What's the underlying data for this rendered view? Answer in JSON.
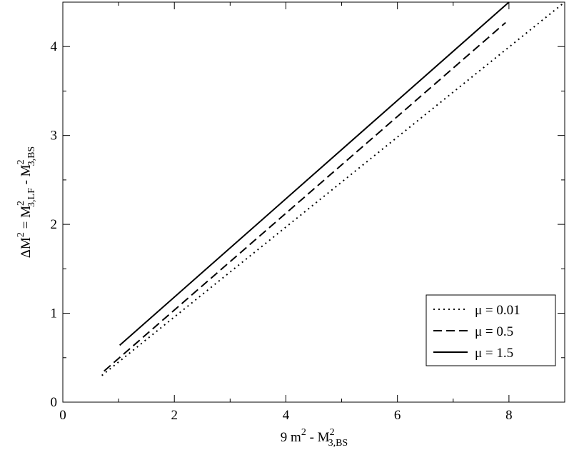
{
  "chart_data": {
    "type": "line",
    "x_label": [
      "9 m",
      "2",
      " - M",
      "2",
      "3,BS"
    ],
    "y_label": [
      "ΔM",
      "2",
      " = M",
      "2",
      "3,LF",
      " - M",
      "2",
      "3,BS"
    ],
    "xlim": [
      0,
      9
    ],
    "ylim": [
      0,
      4.5
    ],
    "xticks": [
      0,
      2,
      4,
      6,
      8
    ],
    "yticks": [
      0,
      1,
      2,
      3,
      4
    ],
    "legend": "lower right",
    "series": [
      {
        "name": "μ = 0.01",
        "color": "#000000",
        "style": "dotted",
        "x": [
          0.7,
          9.0
        ],
        "values": [
          0.3,
          4.5
        ]
      },
      {
        "name": "μ = 0.5",
        "color": "#000000",
        "style": "dashed",
        "x": [
          0.74,
          7.94
        ],
        "values": [
          0.35,
          4.27
        ]
      },
      {
        "name": "μ = 1.5",
        "color": "#000000",
        "style": "solid",
        "x": [
          1.02,
          8.0
        ],
        "values": [
          0.64,
          4.5
        ]
      }
    ]
  }
}
